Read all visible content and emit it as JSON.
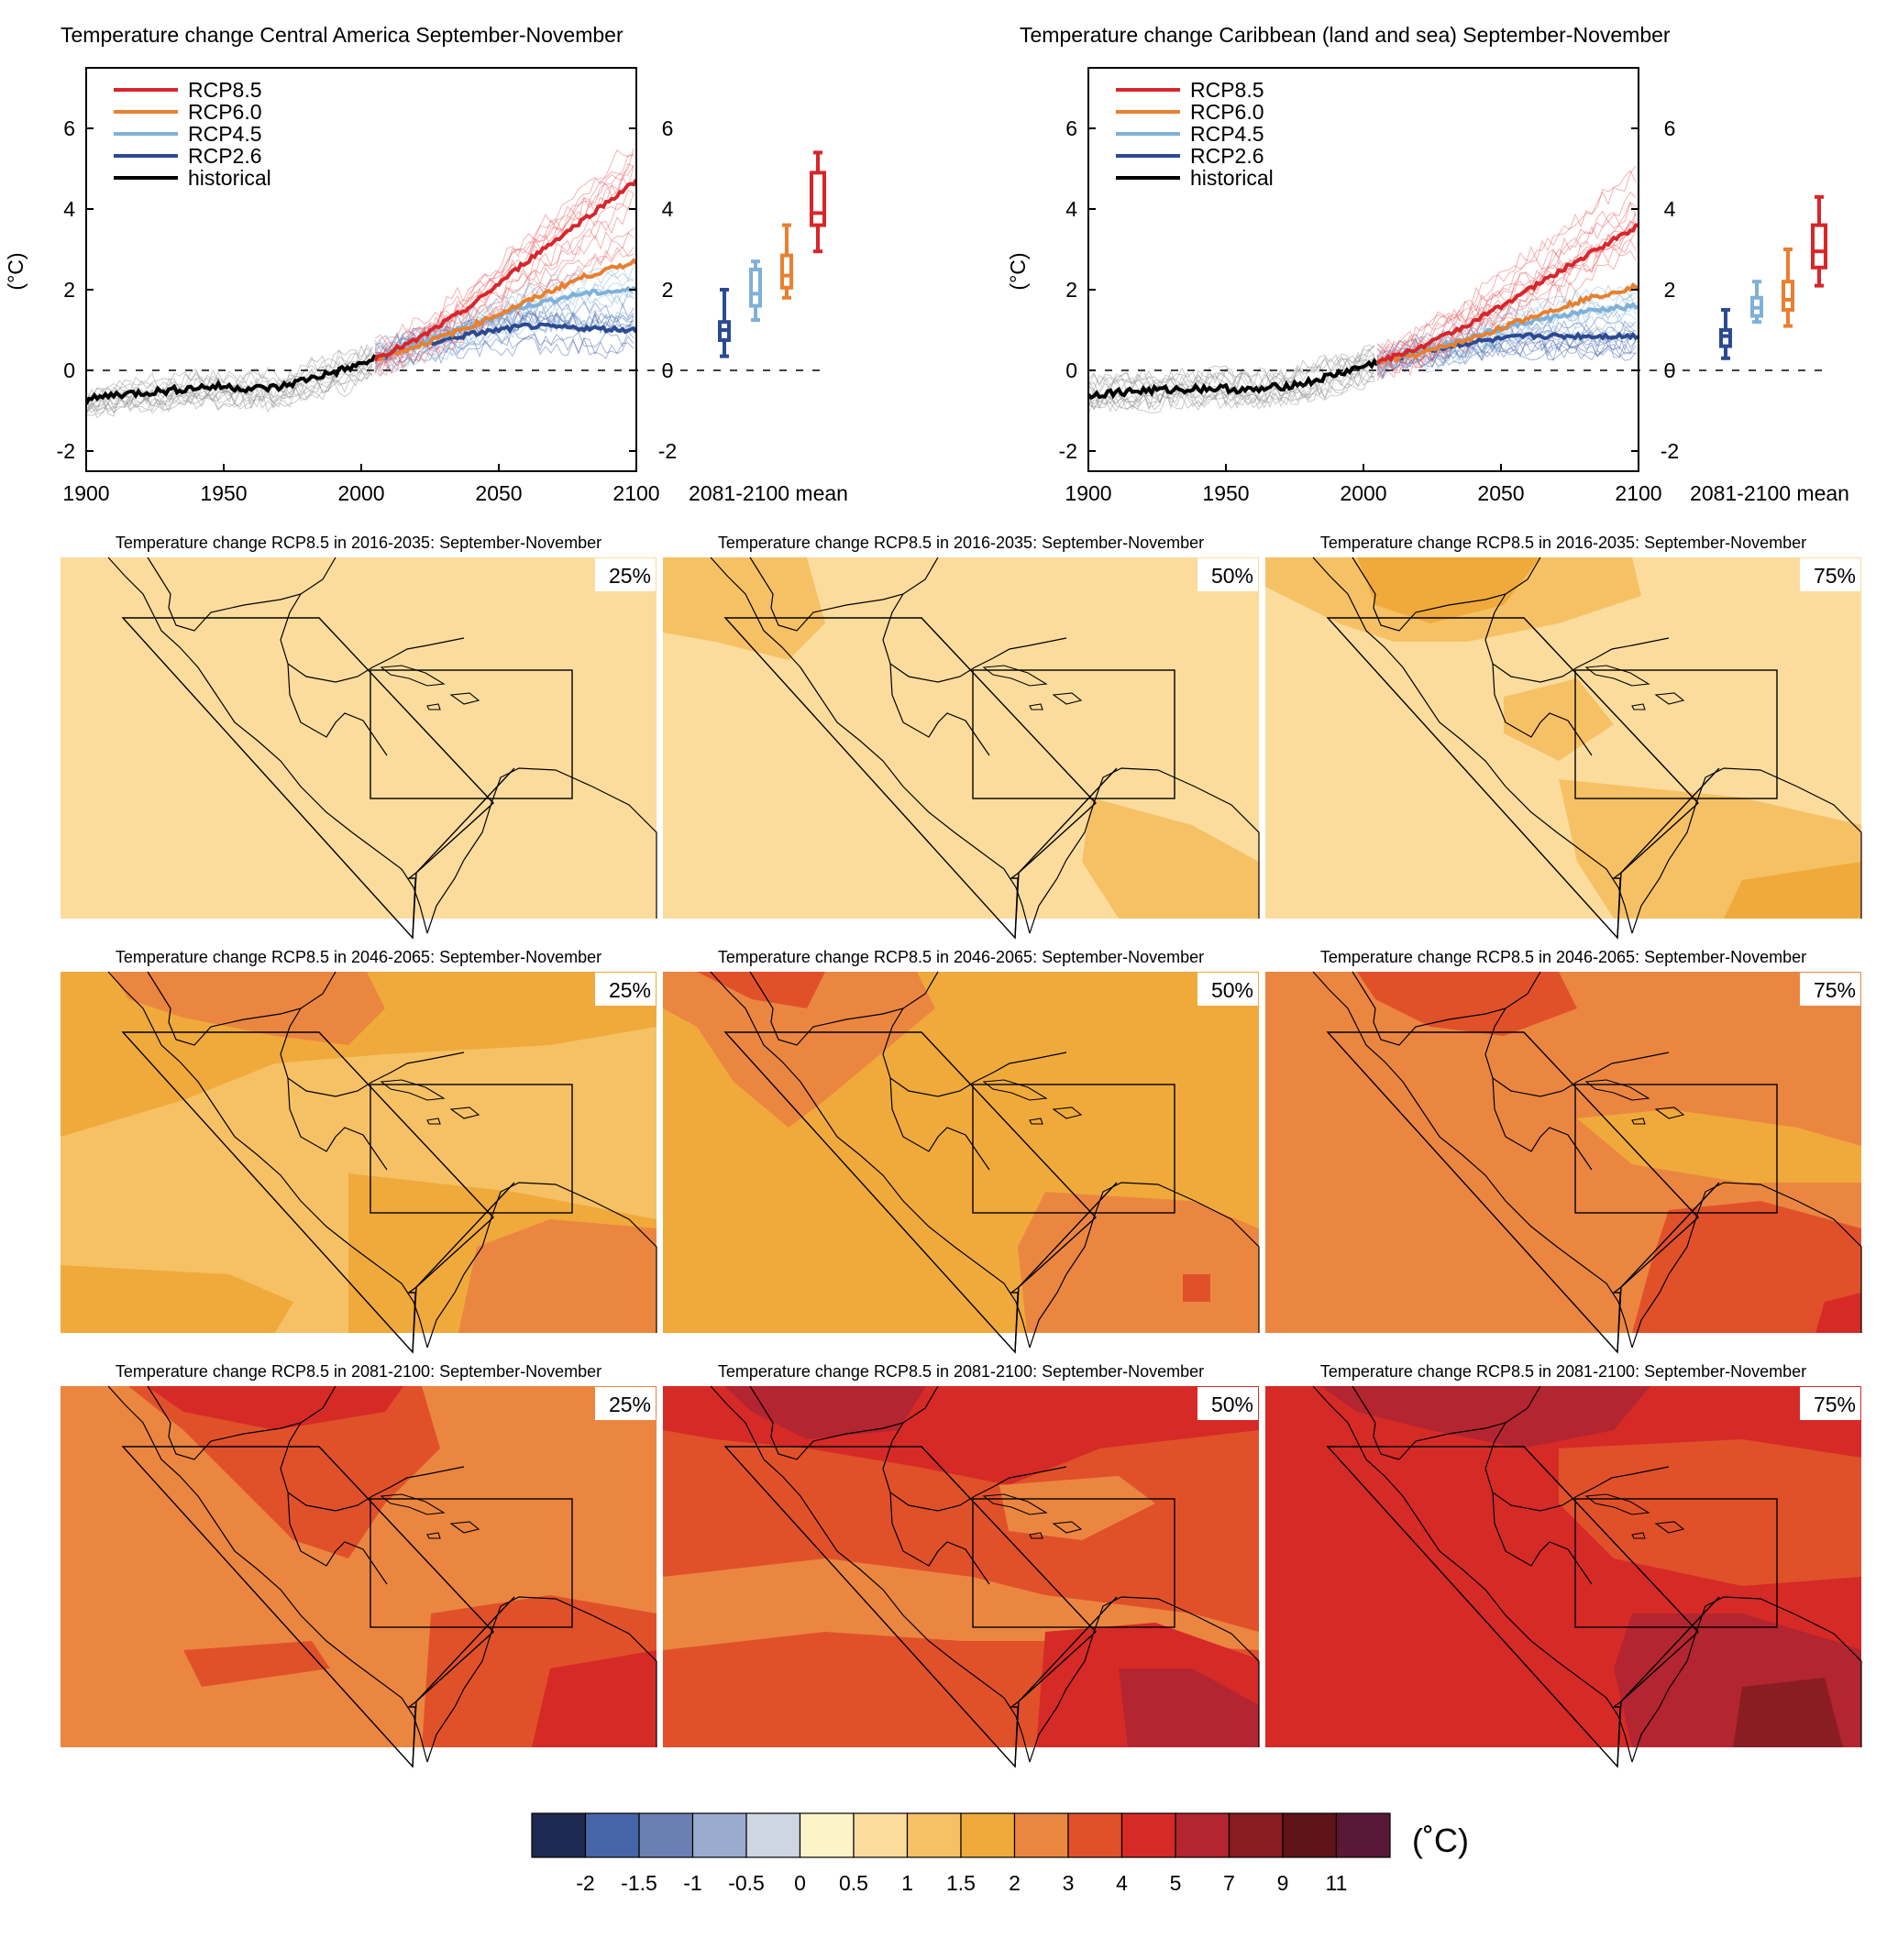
{
  "ts_panels": [
    {
      "title": "Temperature change Central America September-November",
      "ylabel": "(°C)",
      "box_label": "2081-2100 mean",
      "legend": [
        "RCP8.5",
        "RCP6.0",
        "RCP4.5",
        "RCP2.6",
        "historical"
      ]
    },
    {
      "title": "Temperature change Caribbean (land and sea) September-November",
      "ylabel": "(°C)",
      "box_label": "2081-2100 mean",
      "legend": [
        "RCP8.5",
        "RCP6.0",
        "RCP4.5",
        "RCP2.6",
        "historical"
      ]
    }
  ],
  "chart_data": [
    {
      "type": "line",
      "title": "Temperature change Central America September-November",
      "ylabel": "(°C)",
      "xlim": [
        1900,
        2100
      ],
      "ylim": [
        -2.5,
        7.5
      ],
      "x_ticks": [
        1900,
        1950,
        2000,
        2050,
        2100
      ],
      "y_ticks": [
        -2,
        0,
        2,
        4,
        6
      ],
      "legend_position": "top-left",
      "series": [
        {
          "name": "historical",
          "color": "#000000",
          "x": [
            1900,
            1910,
            1920,
            1930,
            1940,
            1950,
            1960,
            1970,
            1980,
            1990,
            2000,
            2005
          ],
          "y": [
            -0.75,
            -0.6,
            -0.55,
            -0.5,
            -0.42,
            -0.4,
            -0.45,
            -0.42,
            -0.22,
            -0.05,
            0.15,
            0.3
          ]
        },
        {
          "name": "RCP2.6",
          "color": "#2b4a90",
          "x": [
            2005,
            2020,
            2040,
            2060,
            2080,
            2100
          ],
          "y": [
            0.3,
            0.6,
            0.9,
            1.1,
            1.05,
            1.0
          ]
        },
        {
          "name": "RCP4.5",
          "color": "#7fb1d8",
          "x": [
            2005,
            2020,
            2040,
            2060,
            2080,
            2100
          ],
          "y": [
            0.3,
            0.65,
            1.1,
            1.6,
            1.9,
            2.0
          ]
        },
        {
          "name": "RCP6.0",
          "color": "#e8802f",
          "x": [
            2005,
            2020,
            2040,
            2060,
            2080,
            2100
          ],
          "y": [
            0.3,
            0.6,
            1.1,
            1.7,
            2.3,
            2.7
          ]
        },
        {
          "name": "RCP8.5",
          "color": "#d7262b",
          "x": [
            2005,
            2020,
            2040,
            2060,
            2080,
            2100
          ],
          "y": [
            0.3,
            0.75,
            1.6,
            2.7,
            3.7,
            4.7
          ]
        }
      ],
      "boxes_2081_2100": [
        {
          "scenario": "RCP2.6",
          "color": "#2b4a90",
          "min": 0.35,
          "q1": 0.75,
          "median": 1.0,
          "q3": 1.2,
          "max": 2.0
        },
        {
          "scenario": "RCP4.5",
          "color": "#7fb1d8",
          "min": 1.25,
          "q1": 1.6,
          "median": 1.9,
          "q3": 2.5,
          "max": 2.7
        },
        {
          "scenario": "RCP6.0",
          "color": "#e8802f",
          "min": 1.8,
          "q1": 2.05,
          "median": 2.35,
          "q3": 2.85,
          "max": 3.6
        },
        {
          "scenario": "RCP8.5",
          "color": "#d7262b",
          "min": 2.95,
          "q1": 3.6,
          "median": 3.9,
          "q3": 4.9,
          "max": 5.4
        }
      ]
    },
    {
      "type": "line",
      "title": "Temperature change Caribbean (land and sea) September-November",
      "ylabel": "(°C)",
      "xlim": [
        1900,
        2100
      ],
      "ylim": [
        -2.5,
        7.5
      ],
      "x_ticks": [
        1900,
        1950,
        2000,
        2050,
        2100
      ],
      "y_ticks": [
        -2,
        0,
        2,
        4,
        6
      ],
      "legend_position": "top-left",
      "series": [
        {
          "name": "historical",
          "color": "#000000",
          "x": [
            1900,
            1910,
            1920,
            1930,
            1940,
            1950,
            1960,
            1970,
            1980,
            1990,
            2000,
            2005
          ],
          "y": [
            -0.6,
            -0.55,
            -0.5,
            -0.48,
            -0.45,
            -0.45,
            -0.5,
            -0.4,
            -0.3,
            -0.1,
            0.1,
            0.2
          ]
        },
        {
          "name": "RCP2.6",
          "color": "#2b4a90",
          "x": [
            2005,
            2020,
            2040,
            2060,
            2080,
            2100
          ],
          "y": [
            0.2,
            0.45,
            0.7,
            0.85,
            0.85,
            0.85
          ]
        },
        {
          "name": "RCP4.5",
          "color": "#7fb1d8",
          "x": [
            2005,
            2020,
            2040,
            2060,
            2080,
            2100
          ],
          "y": [
            0.2,
            0.45,
            0.85,
            1.2,
            1.45,
            1.6
          ]
        },
        {
          "name": "RCP6.0",
          "color": "#e8802f",
          "x": [
            2005,
            2020,
            2040,
            2060,
            2080,
            2100
          ],
          "y": [
            0.2,
            0.4,
            0.8,
            1.3,
            1.75,
            2.1
          ]
        },
        {
          "name": "RCP8.5",
          "color": "#d7262b",
          "x": [
            2005,
            2020,
            2040,
            2060,
            2080,
            2100
          ],
          "y": [
            0.2,
            0.55,
            1.2,
            2.0,
            2.8,
            3.6
          ]
        }
      ],
      "boxes_2081_2100": [
        {
          "scenario": "RCP2.6",
          "color": "#2b4a90",
          "min": 0.3,
          "q1": 0.6,
          "median": 0.85,
          "q3": 1.0,
          "max": 1.5
        },
        {
          "scenario": "RCP4.5",
          "color": "#7fb1d8",
          "min": 1.2,
          "q1": 1.35,
          "median": 1.55,
          "q3": 1.8,
          "max": 2.2
        },
        {
          "scenario": "RCP6.0",
          "color": "#e8802f",
          "min": 1.1,
          "q1": 1.5,
          "median": 1.75,
          "q3": 2.2,
          "max": 3.0
        },
        {
          "scenario": "RCP8.5",
          "color": "#d7262b",
          "min": 2.1,
          "q1": 2.55,
          "median": 2.95,
          "q3": 3.6,
          "max": 4.3
        }
      ]
    },
    {
      "type": "heatmap",
      "description_rows": [
        "2016-2035",
        "2046-2065",
        "2081-2100"
      ],
      "description_cols": [
        "25%",
        "50%",
        "75%"
      ],
      "maps": [
        [
          "Temperature change RCP8.5 in 2016-2035: September-November",
          "Temperature change RCP8.5 in 2016-2035: September-November",
          "Temperature change RCP8.5 in 2016-2035: September-November"
        ],
        [
          "Temperature change RCP8.5 in 2046-2065: September-November",
          "Temperature change RCP8.5 in 2046-2065: September-November",
          "Temperature change RCP8.5 in 2046-2065: September-November"
        ],
        [
          "Temperature change RCP8.5 in 2081-2100: September-November",
          "Temperature change RCP8.5 in 2081-2100: September-November",
          "Temperature change RCP8.5 in 2081-2100: September-November"
        ]
      ],
      "percentiles": [
        "25%",
        "50%",
        "75%"
      ],
      "colorbar": {
        "unit": "(˚C)",
        "ticks": [
          "-2",
          "-1.5",
          "-1",
          "-0.5",
          "0",
          "0.5",
          "1",
          "1.5",
          "2",
          "3",
          "4",
          "5",
          "7",
          "9",
          "11"
        ],
        "colors": [
          "#1e2951",
          "#4565a8",
          "#6a80b4",
          "#9aabd0",
          "#cfd6e3",
          "#fdf3c8",
          "#fbdc9d",
          "#f6c165",
          "#f0aa3b",
          "#eb8641",
          "#e0512a",
          "#d62a27",
          "#b32530",
          "#8a1d22",
          "#5f1318",
          "#5a1838"
        ]
      }
    }
  ]
}
